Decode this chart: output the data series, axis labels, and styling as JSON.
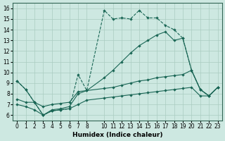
{
  "xlabel": "Humidex (Indice chaleur)",
  "xlim": [
    -0.5,
    23.5
  ],
  "ylim": [
    5.5,
    16.5
  ],
  "yticks": [
    6,
    7,
    8,
    9,
    10,
    11,
    12,
    13,
    14,
    15,
    16
  ],
  "xticks": [
    0,
    1,
    2,
    3,
    4,
    5,
    6,
    7,
    8,
    10,
    11,
    12,
    13,
    14,
    15,
    16,
    17,
    18,
    19,
    20,
    21,
    22,
    23
  ],
  "bg_color": "#cde8e1",
  "grid_color": "#aaccc0",
  "line_color": "#1a6655",
  "series1_x": [
    0,
    1,
    2,
    3,
    4,
    5,
    6,
    7,
    8,
    10,
    11,
    12,
    13,
    14,
    15,
    16,
    17,
    18,
    19,
    20,
    21,
    22,
    23
  ],
  "series1_y": [
    9.2,
    8.4,
    7.2,
    6.0,
    6.4,
    6.5,
    6.6,
    9.8,
    8.3,
    15.8,
    15.0,
    15.1,
    15.0,
    15.8,
    15.1,
    15.1,
    14.4,
    14.0,
    13.2,
    10.2,
    8.4,
    7.8,
    8.6
  ],
  "series2_x": [
    0,
    1,
    2,
    3,
    4,
    5,
    6,
    7,
    8,
    10,
    11,
    12,
    13,
    14,
    15,
    16,
    17,
    18,
    19,
    20,
    21,
    22,
    23
  ],
  "series2_y": [
    9.2,
    8.4,
    7.2,
    6.0,
    6.5,
    6.6,
    6.8,
    8.0,
    8.3,
    9.5,
    10.2,
    11.0,
    11.8,
    12.5,
    13.0,
    13.5,
    13.8,
    13.0,
    13.2,
    10.2,
    8.4,
    7.8,
    8.6
  ],
  "series3_x": [
    0,
    1,
    2,
    3,
    4,
    5,
    6,
    7,
    8,
    10,
    11,
    12,
    13,
    14,
    15,
    16,
    17,
    18,
    19,
    20,
    21,
    22,
    23
  ],
  "series3_y": [
    7.5,
    7.2,
    7.2,
    6.8,
    7.0,
    7.1,
    7.2,
    8.2,
    8.3,
    8.5,
    8.6,
    8.8,
    9.0,
    9.2,
    9.3,
    9.5,
    9.6,
    9.7,
    9.8,
    10.2,
    8.4,
    7.8,
    8.6
  ],
  "series4_x": [
    0,
    1,
    2,
    3,
    4,
    5,
    6,
    7,
    8,
    10,
    11,
    12,
    13,
    14,
    15,
    16,
    17,
    18,
    19,
    20,
    21,
    22,
    23
  ],
  "series4_y": [
    7.0,
    6.8,
    6.5,
    6.0,
    6.4,
    6.5,
    6.6,
    7.0,
    7.4,
    7.6,
    7.7,
    7.8,
    7.9,
    8.0,
    8.1,
    8.2,
    8.3,
    8.4,
    8.5,
    8.6,
    7.8,
    7.8,
    8.6
  ]
}
